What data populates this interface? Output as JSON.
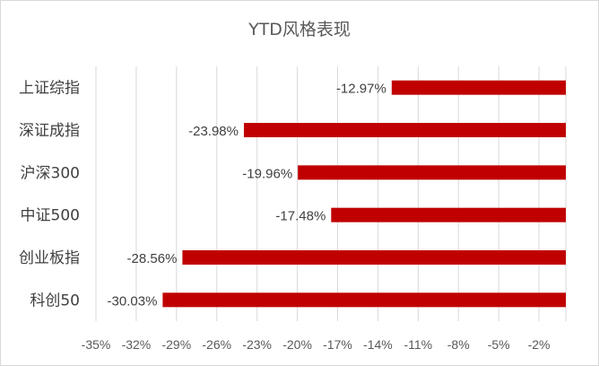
{
  "chart_data": {
    "type": "bar",
    "orientation": "horizontal",
    "title": "YTD风格表现",
    "categories": [
      "上证综指",
      "深证成指",
      "沪深300",
      "中证500",
      "创业板指",
      "科创50"
    ],
    "values": [
      -12.97,
      -23.98,
      -19.96,
      -17.48,
      -28.56,
      -30.03
    ],
    "data_labels": [
      "-12.97%",
      "-23.98%",
      "-19.96%",
      "-17.48%",
      "-28.56%",
      "-30.03%"
    ],
    "x_ticks": [
      -35,
      -32,
      -29,
      -26,
      -23,
      -20,
      -17,
      -14,
      -11,
      -8,
      -5,
      -2
    ],
    "x_tick_labels": [
      "-35%",
      "-32%",
      "-29%",
      "-26%",
      "-23%",
      "-20%",
      "-17%",
      "-14%",
      "-11%",
      "-8%",
      "-5%",
      "-2%"
    ],
    "xlim": [
      -35,
      0
    ],
    "xlabel": "",
    "ylabel": "",
    "grid": "vertical",
    "legend": "none",
    "bar_color": "#c00000",
    "grid_color": "#d9d9d9"
  }
}
